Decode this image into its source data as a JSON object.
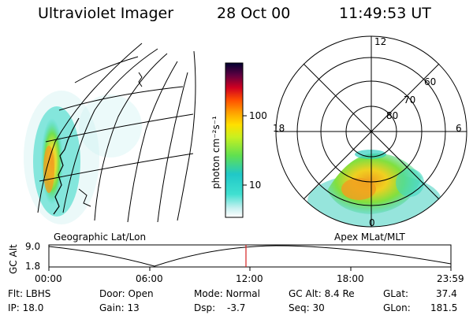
{
  "header": {
    "title": "Ultraviolet Imager",
    "date": "28 Oct 00",
    "time": "11:49:53 UT"
  },
  "colorbar": {
    "label": "photon cm⁻²s⁻¹",
    "ticks": [
      "100",
      "10"
    ]
  },
  "panels": {
    "geo_caption": "Geographic Lat/Lon",
    "polar_caption": "Apex MLat/MLT"
  },
  "polar": {
    "mlt_labels": [
      "12",
      "18",
      "6",
      "0"
    ],
    "lat_labels": [
      "60",
      "70",
      "80"
    ]
  },
  "altitude_plot": {
    "ylabel": "GC Alt",
    "y_ticks": [
      "9.0",
      "1.8"
    ],
    "x_ticks": [
      "00:00",
      "06:00",
      "12:00",
      "18:00",
      "23:59"
    ],
    "current_marker_time": "11:49:53"
  },
  "status": {
    "flt": "Flt: LBHS",
    "ip": "IP: 18.0",
    "door": "Door: Open",
    "gain": "Gain: 13",
    "mode": "Mode: Normal",
    "dsp": "Dsp:",
    "dsp_val": "-3.7",
    "gc_alt": "GC Alt: 8.4 Re",
    "seq": "Seq: 30",
    "glat": "GLat:",
    "glat_val": "37.4",
    "glon": "GLon:",
    "glon_val": "181.5"
  },
  "colors": {
    "marker": "#d42020",
    "aurora_low": "#2ed8c0",
    "aurora_mid": "#7fe040",
    "aurora_high": "#f0a020"
  }
}
